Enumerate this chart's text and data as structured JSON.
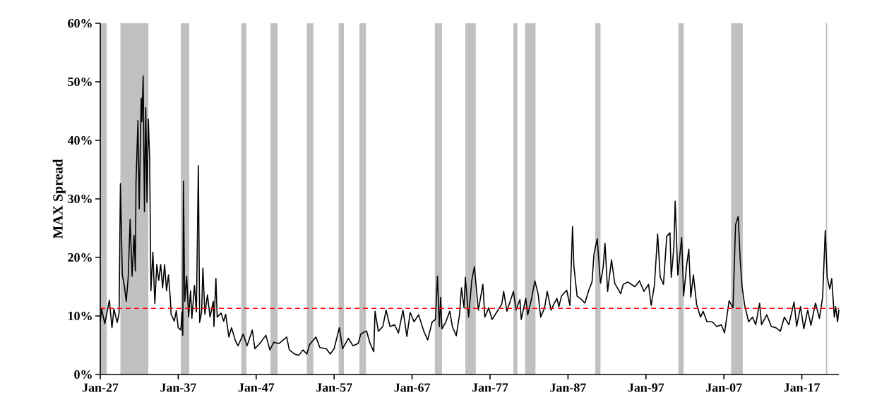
{
  "chart_data": {
    "type": "line",
    "ylabel": "MAX Spread",
    "x": [
      "1927-01",
      "1927-03",
      "1927-08",
      "1928-03",
      "1928-07",
      "1928-10",
      "1929-03",
      "1929-06",
      "1929-08",
      "1929-11",
      "1930-02",
      "1930-05",
      "1930-08",
      "1930-11",
      "1931-02",
      "1931-05",
      "1931-07",
      "1931-08",
      "1931-11",
      "1932-01",
      "1932-04",
      "1932-05",
      "1932-07",
      "1932-09",
      "1932-11",
      "1933-01",
      "1933-03",
      "1933-05",
      "1933-07",
      "1933-10",
      "1934-01",
      "1934-04",
      "1934-07",
      "1934-10",
      "1935-01",
      "1935-04",
      "1935-07",
      "1935-10",
      "1936-01",
      "1936-02",
      "1936-07",
      "1936-10",
      "1937-01",
      "1937-05",
      "1937-07",
      "1937-08",
      "1937-09",
      "1937-11",
      "1938-02",
      "1938-05",
      "1938-08",
      "1938-10",
      "1939-02",
      "1939-05",
      "1939-08",
      "1939-10",
      "1940-01",
      "1940-03",
      "1940-06",
      "1940-10",
      "1941-02",
      "1941-07",
      "1941-08",
      "1941-11",
      "1942-01",
      "1942-07",
      "1942-11",
      "1943-02",
      "1943-07",
      "1943-11",
      "1944-05",
      "1944-09",
      "1945-05",
      "1945-11",
      "1946-07",
      "1946-11",
      "1947-08",
      "1948-04",
      "1948-10",
      "1949-04",
      "1949-12",
      "1950-12",
      "1951-04",
      "1951-12",
      "1952-07",
      "1953-01",
      "1953-07",
      "1953-11",
      "1954-09",
      "1955-03",
      "1956-01",
      "1956-07",
      "1957-01",
      "1957-09",
      "1958-02",
      "1958-11",
      "1959-06",
      "1960-02",
      "1960-06",
      "1960-12",
      "1961-03",
      "1961-08",
      "1962-02",
      "1962-04",
      "1962-09",
      "1963-04",
      "1963-09",
      "1964-03",
      "1964-10",
      "1965-04",
      "1965-11",
      "1966-05",
      "1966-10",
      "1967-04",
      "1967-11",
      "1968-07",
      "1969-01",
      "1969-08",
      "1970-01",
      "1970-04",
      "1970-07",
      "1970-09",
      "1970-11",
      "1971-05",
      "1971-11",
      "1972-03",
      "1972-09",
      "1973-02",
      "1973-05",
      "1973-09",
      "1973-11",
      "1974-04",
      "1974-09",
      "1975-01",
      "1975-03",
      "1975-07",
      "1976-02",
      "1976-05",
      "1976-11",
      "1977-04",
      "1977-11",
      "1978-07",
      "1978-10",
      "1979-03",
      "1980-01",
      "1980-05",
      "1980-11",
      "1981-01",
      "1981-08",
      "1981-11",
      "1982-05",
      "1982-10",
      "1983-03",
      "1983-07",
      "1984-01",
      "1984-05",
      "1984-11",
      "1985-04",
      "1985-08",
      "1985-11",
      "1986-03",
      "1986-11",
      "1987-04",
      "1987-08",
      "1987-10",
      "1988-03",
      "1988-08",
      "1989-03",
      "1989-09",
      "1990-02",
      "1990-05",
      "1990-10",
      "1991-03",
      "1991-07",
      "1991-10",
      "1992-02",
      "1992-08",
      "1993-01",
      "1993-10",
      "1994-02",
      "1994-09",
      "1995-08",
      "1996-03",
      "1996-10",
      "1997-05",
      "1997-09",
      "1998-02",
      "1998-07",
      "1998-11",
      "1999-04",
      "1999-09",
      "2000-02",
      "2000-04",
      "2000-08",
      "2000-10",
      "2001-02",
      "2001-08",
      "2001-11",
      "2002-04",
      "2002-07",
      "2002-10",
      "2003-02",
      "2003-07",
      "2004-01",
      "2004-05",
      "2004-11",
      "2005-07",
      "2006-02",
      "2006-09",
      "2007-02",
      "2007-07",
      "2007-09",
      "2008-03",
      "2008-07",
      "2008-11",
      "2009-02",
      "2009-05",
      "2009-09",
      "2010-03",
      "2010-09",
      "2011-02",
      "2011-08",
      "2011-11",
      "2012-07",
      "2013-02",
      "2013-09",
      "2014-04",
      "2014-10",
      "2015-05",
      "2016-01",
      "2016-05",
      "2016-11",
      "2017-04",
      "2017-10",
      "2018-03",
      "2018-10",
      "2019-04",
      "2019-09",
      "2020-01",
      "2020-04",
      "2020-08",
      "2020-11",
      "2021-03",
      "2021-05",
      "2021-08",
      "2021-10"
    ],
    "series": [
      {
        "color": "#000000",
        "values": [
          9.1,
          11.2,
          8.7,
          12.7,
          8.0,
          11.2,
          8.9,
          10.5,
          32.6,
          17.0,
          15.2,
          12.5,
          16.6,
          26.5,
          16.8,
          23.8,
          17.7,
          32.8,
          43.4,
          28.3,
          47.2,
          43.2,
          51.0,
          27.8,
          45.6,
          29.4,
          43.6,
          36.8,
          14.3,
          20.9,
          12.1,
          18.8,
          16.1,
          18.8,
          14.8,
          18.8,
          14.3,
          17.0,
          12.7,
          10.3,
          9.1,
          10.9,
          8.0,
          7.6,
          10.7,
          6.7,
          33.0,
          12.5,
          16.8,
          9.8,
          14.3,
          9.6,
          15.2,
          10.7,
          35.7,
          8.9,
          10.7,
          18.2,
          10.3,
          13.6,
          9.8,
          12.5,
          8.2,
          16.4,
          9.8,
          10.5,
          9.1,
          10.3,
          6.4,
          8.0,
          5.8,
          4.9,
          6.9,
          4.9,
          7.6,
          4.4,
          5.5,
          6.7,
          4.2,
          5.5,
          5.3,
          6.4,
          4.2,
          3.5,
          3.3,
          4.2,
          3.5,
          5.1,
          6.4,
          4.6,
          4.4,
          3.5,
          4.4,
          8.0,
          4.4,
          6.2,
          4.9,
          5.3,
          6.9,
          7.3,
          7.4,
          5.4,
          3.9,
          10.8,
          7.4,
          8.2,
          11.0,
          8.2,
          8.5,
          7.1,
          11.0,
          6.5,
          10.6,
          9.0,
          10.2,
          7.4,
          5.9,
          9.0,
          9.4,
          16.8,
          8.2,
          13.2,
          7.8,
          9.0,
          10.8,
          8.2,
          6.6,
          10.2,
          14.8,
          11.4,
          16.6,
          9.8,
          16.2,
          18.4,
          15.8,
          11.0,
          15.4,
          9.8,
          11.4,
          9.4,
          10.6,
          12.0,
          14.2,
          10.8,
          14.2,
          11.0,
          12.8,
          9.4,
          13.0,
          10.2,
          13.0,
          16.0,
          13.8,
          9.8,
          11.4,
          14.2,
          11.0,
          12.2,
          13.0,
          11.6,
          13.4,
          14.4,
          11.8,
          25.3,
          18.6,
          13.4,
          13.0,
          12.2,
          14.4,
          15.8,
          20.6,
          23.2,
          15.6,
          18.2,
          22.4,
          14.2,
          19.6,
          15.6,
          13.8,
          15.4,
          15.8,
          15.0,
          16.0,
          14.2,
          15.4,
          11.8,
          15.2,
          24.0,
          16.6,
          15.4,
          23.6,
          24.2,
          16.6,
          21.8,
          29.6,
          17.0,
          23.4,
          13.4,
          19.0,
          21.4,
          13.2,
          17.0,
          12.0,
          9.8,
          10.8,
          9.0,
          9.0,
          8.2,
          8.5,
          7.1,
          11.0,
          12.6,
          11.4,
          25.6,
          27.0,
          19.8,
          15.0,
          11.8,
          9.0,
          9.8,
          8.5,
          12.2,
          8.5,
          10.2,
          8.2,
          8.0,
          7.4,
          9.8,
          8.5,
          12.4,
          8.2,
          11.6,
          7.8,
          11.0,
          8.4,
          12.2,
          9.6,
          13.2,
          24.6,
          16.6,
          14.6,
          16.4,
          9.8,
          11.6,
          9.0,
          11.1
        ]
      }
    ],
    "xlim": [
      "1927-01",
      "2021-10"
    ],
    "xticks": [
      {
        "value": "1927-01",
        "label": "Jan-27"
      },
      {
        "value": "1937-01",
        "label": "Jan-37"
      },
      {
        "value": "1947-01",
        "label": "Jan-47"
      },
      {
        "value": "1957-01",
        "label": "Jan-57"
      },
      {
        "value": "1967-01",
        "label": "Jan-67"
      },
      {
        "value": "1977-01",
        "label": "Jan-77"
      },
      {
        "value": "1987-01",
        "label": "Jan-87"
      },
      {
        "value": "1997-01",
        "label": "Jan-97"
      },
      {
        "value": "2007-01",
        "label": "Jan-07"
      },
      {
        "value": "2017-01",
        "label": "Jan-17"
      }
    ],
    "ylim": [
      0,
      60
    ],
    "yticks": [
      {
        "value": 0,
        "label": "0%"
      },
      {
        "value": 10,
        "label": "10%"
      },
      {
        "value": 20,
        "label": "20%"
      },
      {
        "value": 30,
        "label": "30%"
      },
      {
        "value": 40,
        "label": "40%"
      },
      {
        "value": 50,
        "label": "50%"
      },
      {
        "value": 60,
        "label": "60%"
      }
    ],
    "ref_lines": [
      {
        "axis": "y",
        "value": 11.3,
        "color": "#ff0000",
        "line_style": "dashed"
      }
    ],
    "bands": [
      {
        "axis": "x",
        "from": "1927-01",
        "to": "1927-11",
        "color": "#c0c0c0"
      },
      {
        "axis": "x",
        "from": "1929-08",
        "to": "1933-03",
        "color": "#c0c0c0"
      },
      {
        "axis": "x",
        "from": "1937-05",
        "to": "1938-06",
        "color": "#c0c0c0"
      },
      {
        "axis": "x",
        "from": "1945-02",
        "to": "1945-10",
        "color": "#c0c0c0"
      },
      {
        "axis": "x",
        "from": "1948-11",
        "to": "1949-10",
        "color": "#c0c0c0"
      },
      {
        "axis": "x",
        "from": "1953-07",
        "to": "1954-05",
        "color": "#c0c0c0"
      },
      {
        "axis": "x",
        "from": "1957-08",
        "to": "1958-04",
        "color": "#c0c0c0"
      },
      {
        "axis": "x",
        "from": "1960-04",
        "to": "1961-02",
        "color": "#c0c0c0"
      },
      {
        "axis": "x",
        "from": "1969-12",
        "to": "1970-11",
        "color": "#c0c0c0"
      },
      {
        "axis": "x",
        "from": "1973-11",
        "to": "1975-03",
        "color": "#c0c0c0"
      },
      {
        "axis": "x",
        "from": "1980-01",
        "to": "1980-07",
        "color": "#c0c0c0"
      },
      {
        "axis": "x",
        "from": "1981-07",
        "to": "1982-11",
        "color": "#c0c0c0"
      },
      {
        "axis": "x",
        "from": "1990-07",
        "to": "1991-03",
        "color": "#c0c0c0"
      },
      {
        "axis": "x",
        "from": "2001-03",
        "to": "2001-11",
        "color": "#c0c0c0"
      },
      {
        "axis": "x",
        "from": "2007-12",
        "to": "2009-06",
        "color": "#c0c0c0"
      },
      {
        "axis": "x",
        "from": "2020-02",
        "to": "2020-04",
        "color": "#c0c0c0"
      }
    ]
  }
}
